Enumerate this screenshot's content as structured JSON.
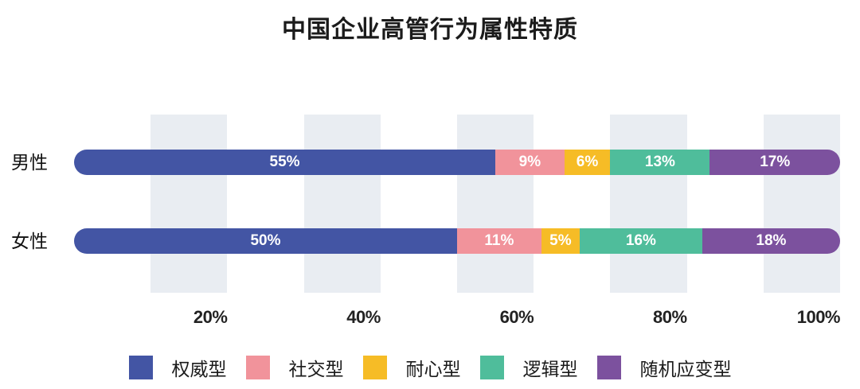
{
  "chart_data": {
    "type": "bar",
    "variant": "stacked-horizontal",
    "title": "中国企业高管行为属性特质",
    "categories": [
      "男性",
      "女性"
    ],
    "series": [
      {
        "name": "权威型",
        "color": "#4355A4",
        "values": [
          55,
          50
        ]
      },
      {
        "name": "社交型",
        "color": "#F1939B",
        "values": [
          9,
          11
        ]
      },
      {
        "name": "耐心型",
        "color": "#F6BC26",
        "values": [
          6,
          5
        ]
      },
      {
        "name": "逻辑型",
        "color": "#4FBD9B",
        "values": [
          13,
          16
        ]
      },
      {
        "name": "随机应变型",
        "color": "#7C519E",
        "values": [
          17,
          18
        ]
      }
    ],
    "value_label_suffix": "%",
    "x_axis": {
      "min": 0,
      "max": 100,
      "ticks": [
        {
          "label": "20%",
          "value": 20
        },
        {
          "label": "40%",
          "value": 40
        },
        {
          "label": "60%",
          "value": 60
        },
        {
          "label": "80%",
          "value": 80
        },
        {
          "label": "100%",
          "value": 100
        }
      ]
    },
    "background_stripes": {
      "color": "#E9EDF2",
      "ranges": [
        [
          10,
          20
        ],
        [
          30,
          40
        ],
        [
          50,
          60
        ],
        [
          70,
          80
        ],
        [
          90,
          100
        ]
      ]
    },
    "legend": {
      "position": "bottom",
      "items": [
        "权威型",
        "社交型",
        "耐心型",
        "逻辑型",
        "随机应变型"
      ]
    },
    "value_label_color": "#FFFFFF",
    "grid": false
  }
}
